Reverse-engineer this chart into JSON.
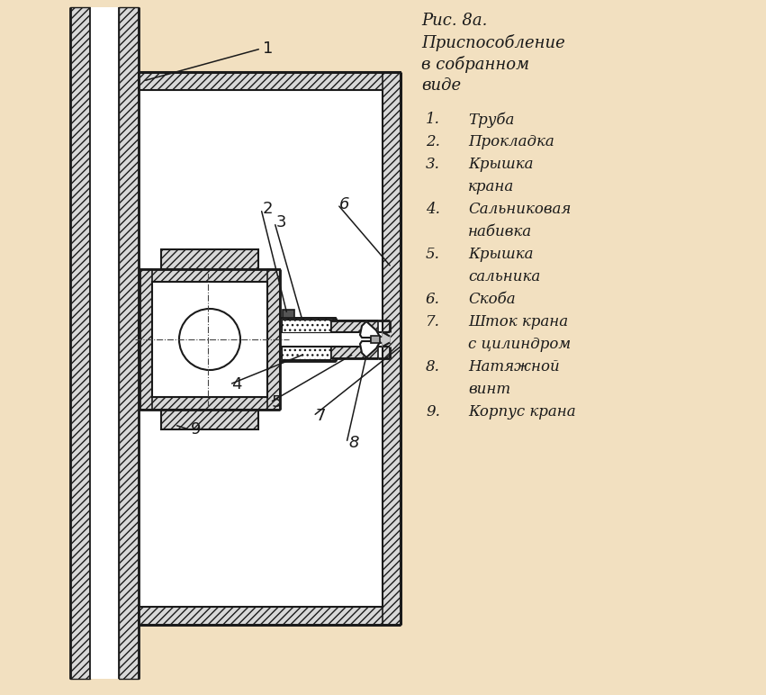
{
  "bg_color": "#f2e0c0",
  "line_color": "#1a1a1a",
  "hatch_fc": "#d8d8d8",
  "white": "#ffffff",
  "title_lines": [
    "Рис. 8а.",
    "Приспособление",
    "в собранном",
    "виде"
  ],
  "legend": [
    [
      "1.",
      "Труба"
    ],
    [
      "2.",
      "Прокладка"
    ],
    [
      "3.",
      "Крышка"
    ],
    [
      "",
      "крана"
    ],
    [
      "4.",
      "Сальниковая"
    ],
    [
      "",
      "набивка"
    ],
    [
      "5.",
      "Крышка"
    ],
    [
      "",
      "сальника"
    ],
    [
      "6.",
      "Скоба"
    ],
    [
      "7.",
      "Шток крана"
    ],
    [
      "",
      "с цилиндром"
    ],
    [
      "8.",
      "Натяжной"
    ],
    [
      "",
      "винт"
    ],
    [
      "9.",
      "Корпус крана"
    ]
  ],
  "text_color": "#1a1a1a",
  "label_fs": 12,
  "title_fs": 13,
  "fig_w": 8.51,
  "fig_h": 7.72,
  "dpi": 100
}
